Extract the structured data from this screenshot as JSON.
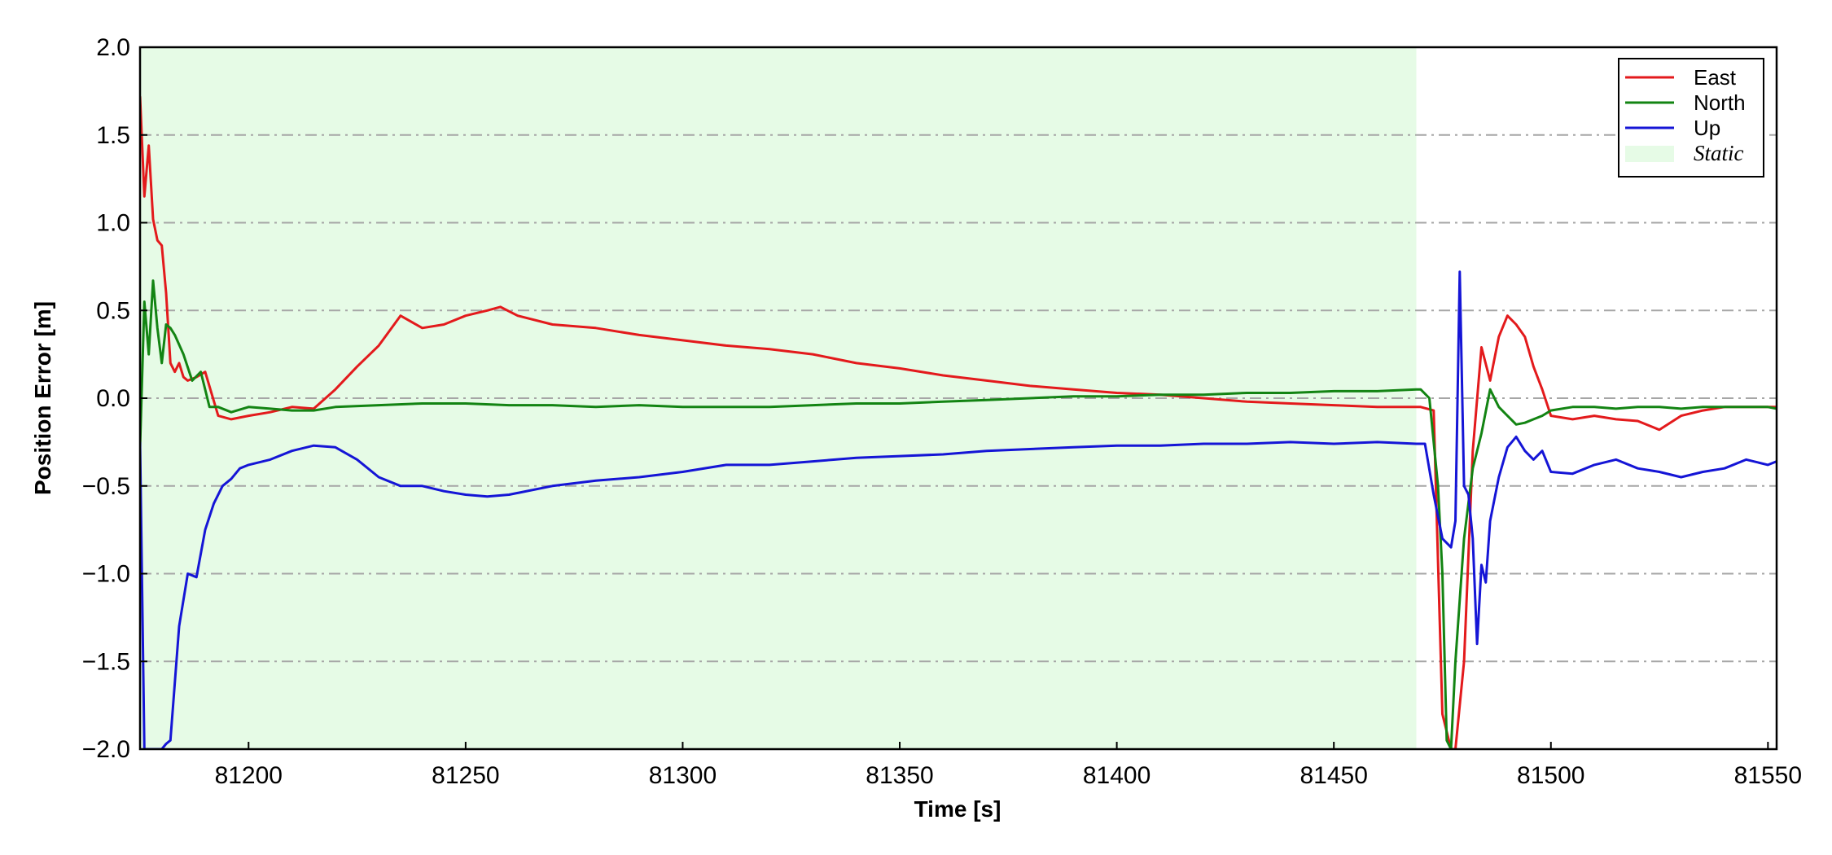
{
  "chart_data": {
    "type": "line",
    "xlabel": "Time [s]",
    "ylabel": "Position Error [m]",
    "xlim": [
      81175,
      81552
    ],
    "ylim": [
      -2.0,
      2.0
    ],
    "x_ticks": [
      81200,
      81250,
      81300,
      81350,
      81400,
      81450,
      81500,
      81550
    ],
    "y_ticks": [
      -2.0,
      -1.5,
      -1.0,
      -0.5,
      0.0,
      0.5,
      1.0,
      1.5,
      2.0
    ],
    "x_tick_labels": [
      "81200",
      "81250",
      "81300",
      "81350",
      "81400",
      "81450",
      "81500",
      "81550"
    ],
    "y_tick_labels": [
      "−2.0",
      "−1.5",
      "−1.0",
      "−0.5",
      "0.0",
      "0.5",
      "1.0",
      "1.5",
      "2.0"
    ],
    "grid": "horizontal dash-dot",
    "legend_position": "top-right",
    "shaded_region": {
      "label": "Static",
      "x_start": 81175,
      "x_end": 81469,
      "color": "#e6fbe6"
    },
    "series": [
      {
        "name": "East",
        "color": "#e31a1c",
        "x": [
          81175,
          81176,
          81177,
          81178,
          81179,
          81180,
          81181,
          81182,
          81183,
          81184,
          81185,
          81186,
          81188,
          81190,
          81193,
          81196,
          81200,
          81205,
          81210,
          81215,
          81220,
          81225,
          81230,
          81235,
          81240,
          81245,
          81250,
          81255,
          81258,
          81262,
          81270,
          81280,
          81290,
          81300,
          81310,
          81320,
          81330,
          81340,
          81350,
          81360,
          81370,
          81380,
          81390,
          81400,
          81410,
          81420,
          81430,
          81440,
          81450,
          81460,
          81470,
          81473,
          81475,
          81477,
          81478,
          81480,
          81482,
          81484,
          81486,
          81488,
          81490,
          81492,
          81494,
          81496,
          81498,
          81500,
          81505,
          81510,
          81515,
          81520,
          81525,
          81530,
          81535,
          81540,
          81545,
          81550,
          81552
        ],
        "y": [
          1.72,
          1.15,
          1.44,
          1.02,
          0.9,
          0.87,
          0.6,
          0.2,
          0.15,
          0.2,
          0.12,
          0.1,
          0.12,
          0.15,
          -0.1,
          -0.12,
          -0.1,
          -0.08,
          -0.05,
          -0.06,
          0.05,
          0.18,
          0.3,
          0.47,
          0.4,
          0.42,
          0.47,
          0.5,
          0.52,
          0.47,
          0.42,
          0.4,
          0.36,
          0.33,
          0.3,
          0.28,
          0.25,
          0.2,
          0.17,
          0.13,
          0.1,
          0.07,
          0.05,
          0.03,
          0.02,
          0.0,
          -0.02,
          -0.03,
          -0.04,
          -0.05,
          -0.05,
          -0.07,
          -1.8,
          -2.0,
          -2.0,
          -1.5,
          -0.3,
          0.29,
          0.1,
          0.35,
          0.47,
          0.42,
          0.35,
          0.18,
          0.05,
          -0.1,
          -0.12,
          -0.1,
          -0.12,
          -0.13,
          -0.18,
          -0.1,
          -0.07,
          -0.05,
          -0.05,
          -0.05,
          -0.05
        ]
      },
      {
        "name": "North",
        "color": "#138413",
        "x": [
          81175,
          81176,
          81177,
          81178,
          81179,
          81180,
          81181,
          81182,
          81183,
          81185,
          81187,
          81189,
          81191,
          81193,
          81196,
          81200,
          81205,
          81210,
          81215,
          81220,
          81230,
          81240,
          81250,
          81260,
          81270,
          81280,
          81290,
          81300,
          81310,
          81320,
          81330,
          81340,
          81350,
          81360,
          81370,
          81380,
          81390,
          81400,
          81410,
          81420,
          81430,
          81440,
          81450,
          81460,
          81469,
          81470,
          81472,
          81474,
          81475,
          81476,
          81477,
          81478,
          81480,
          81482,
          81484,
          81486,
          81488,
          81490,
          81492,
          81494,
          81496,
          81498,
          81500,
          81505,
          81510,
          81515,
          81520,
          81525,
          81530,
          81535,
          81540,
          81545,
          81550,
          81552
        ],
        "y": [
          -0.28,
          0.55,
          0.25,
          0.67,
          0.4,
          0.2,
          0.42,
          0.4,
          0.36,
          0.25,
          0.1,
          0.15,
          -0.05,
          -0.05,
          -0.08,
          -0.05,
          -0.06,
          -0.07,
          -0.07,
          -0.05,
          -0.04,
          -0.03,
          -0.03,
          -0.04,
          -0.04,
          -0.05,
          -0.04,
          -0.05,
          -0.05,
          -0.05,
          -0.04,
          -0.03,
          -0.03,
          -0.02,
          -0.01,
          0.0,
          0.01,
          0.01,
          0.02,
          0.02,
          0.03,
          0.03,
          0.04,
          0.04,
          0.05,
          0.05,
          0.0,
          -0.5,
          -1.0,
          -1.95,
          -2.0,
          -1.5,
          -0.8,
          -0.4,
          -0.2,
          0.05,
          -0.05,
          -0.1,
          -0.15,
          -0.14,
          -0.12,
          -0.1,
          -0.07,
          -0.05,
          -0.05,
          -0.06,
          -0.05,
          -0.05,
          -0.06,
          -0.05,
          -0.05,
          -0.05,
          -0.05,
          -0.06
        ]
      },
      {
        "name": "Up",
        "color": "#1515d6",
        "x": [
          81175,
          81176,
          81177,
          81178,
          81179,
          81180,
          81181,
          81182,
          81184,
          81186,
          81188,
          81190,
          81192,
          81194,
          81196,
          81198,
          81200,
          81205,
          81210,
          81215,
          81220,
          81225,
          81230,
          81235,
          81240,
          81245,
          81250,
          81255,
          81260,
          81270,
          81280,
          81290,
          81300,
          81310,
          81320,
          81330,
          81340,
          81350,
          81360,
          81370,
          81380,
          81390,
          81400,
          81410,
          81420,
          81430,
          81440,
          81450,
          81460,
          81469,
          81471,
          81473,
          81475,
          81477,
          81478,
          81479,
          81480,
          81481,
          81482,
          81483,
          81484,
          81485,
          81486,
          81488,
          81490,
          81492,
          81494,
          81496,
          81498,
          81500,
          81505,
          81510,
          81515,
          81520,
          81525,
          81530,
          81535,
          81540,
          81545,
          81550,
          81552
        ],
        "y": [
          -0.25,
          -2.0,
          -2.0,
          -2.0,
          -2.0,
          -2.0,
          -1.97,
          -1.95,
          -1.3,
          -1.0,
          -1.02,
          -0.75,
          -0.6,
          -0.5,
          -0.46,
          -0.4,
          -0.38,
          -0.35,
          -0.3,
          -0.27,
          -0.28,
          -0.35,
          -0.45,
          -0.5,
          -0.5,
          -0.53,
          -0.55,
          -0.56,
          -0.55,
          -0.5,
          -0.47,
          -0.45,
          -0.42,
          -0.38,
          -0.38,
          -0.36,
          -0.34,
          -0.33,
          -0.32,
          -0.3,
          -0.29,
          -0.28,
          -0.27,
          -0.27,
          -0.26,
          -0.26,
          -0.25,
          -0.26,
          -0.25,
          -0.26,
          -0.26,
          -0.55,
          -0.8,
          -0.85,
          -0.7,
          0.72,
          -0.5,
          -0.55,
          -0.8,
          -1.4,
          -0.95,
          -1.05,
          -0.7,
          -0.45,
          -0.28,
          -0.22,
          -0.3,
          -0.35,
          -0.3,
          -0.42,
          -0.43,
          -0.38,
          -0.35,
          -0.4,
          -0.42,
          -0.45,
          -0.42,
          -0.4,
          -0.35,
          -0.38,
          -0.36
        ]
      }
    ]
  }
}
